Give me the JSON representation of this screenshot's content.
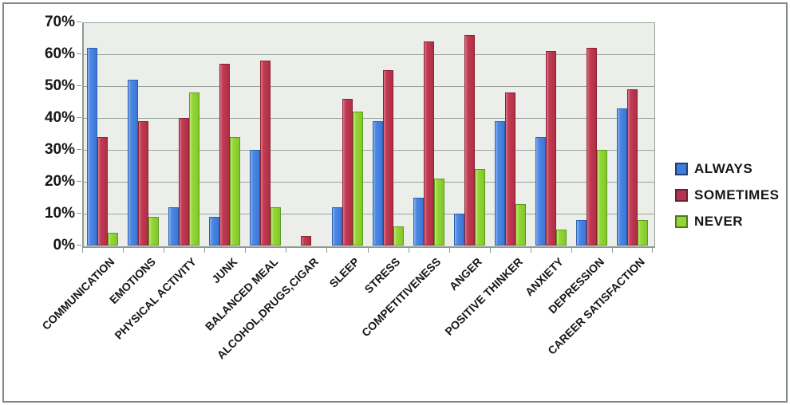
{
  "chart_data": {
    "type": "bar",
    "title": "",
    "xlabel": "",
    "ylabel": "",
    "ylim": [
      0,
      70
    ],
    "y_tick_step": 10,
    "y_tick_labels": [
      "0%",
      "10%",
      "20%",
      "30%",
      "40%",
      "50%",
      "60%",
      "70%"
    ],
    "grid": true,
    "legend_position": "right",
    "plot_bg_color": "#ebeee9",
    "categories": [
      "COMMUNICATION",
      "EMOTIONS",
      "PHYSICAL ACTIVITY",
      "JUNK",
      "BALANCED MEAL",
      "ALCOHOL,DRUGS,CIGAR",
      "SLEEP",
      "STRESS",
      "COMPETITIVENESS",
      "ANGER",
      "POSITIVE THINKER",
      "ANXIETY",
      "DEPRESSION",
      "CAREER SATISFACTION"
    ],
    "series": [
      {
        "name": "ALWAYS",
        "color": "#3f7cdb",
        "values": [
          62,
          52,
          12,
          9,
          30,
          0,
          12,
          39,
          15,
          10,
          39,
          34,
          8,
          43
        ]
      },
      {
        "name": "SOMETIMES",
        "color": "#c23a52",
        "values": [
          34,
          39,
          40,
          57,
          58,
          3,
          46,
          55,
          64,
          66,
          48,
          61,
          62,
          49
        ]
      },
      {
        "name": "NEVER",
        "color": "#94d637",
        "values": [
          4,
          9,
          48,
          34,
          12,
          0,
          42,
          6,
          21,
          24,
          13,
          5,
          30,
          8
        ]
      }
    ]
  }
}
